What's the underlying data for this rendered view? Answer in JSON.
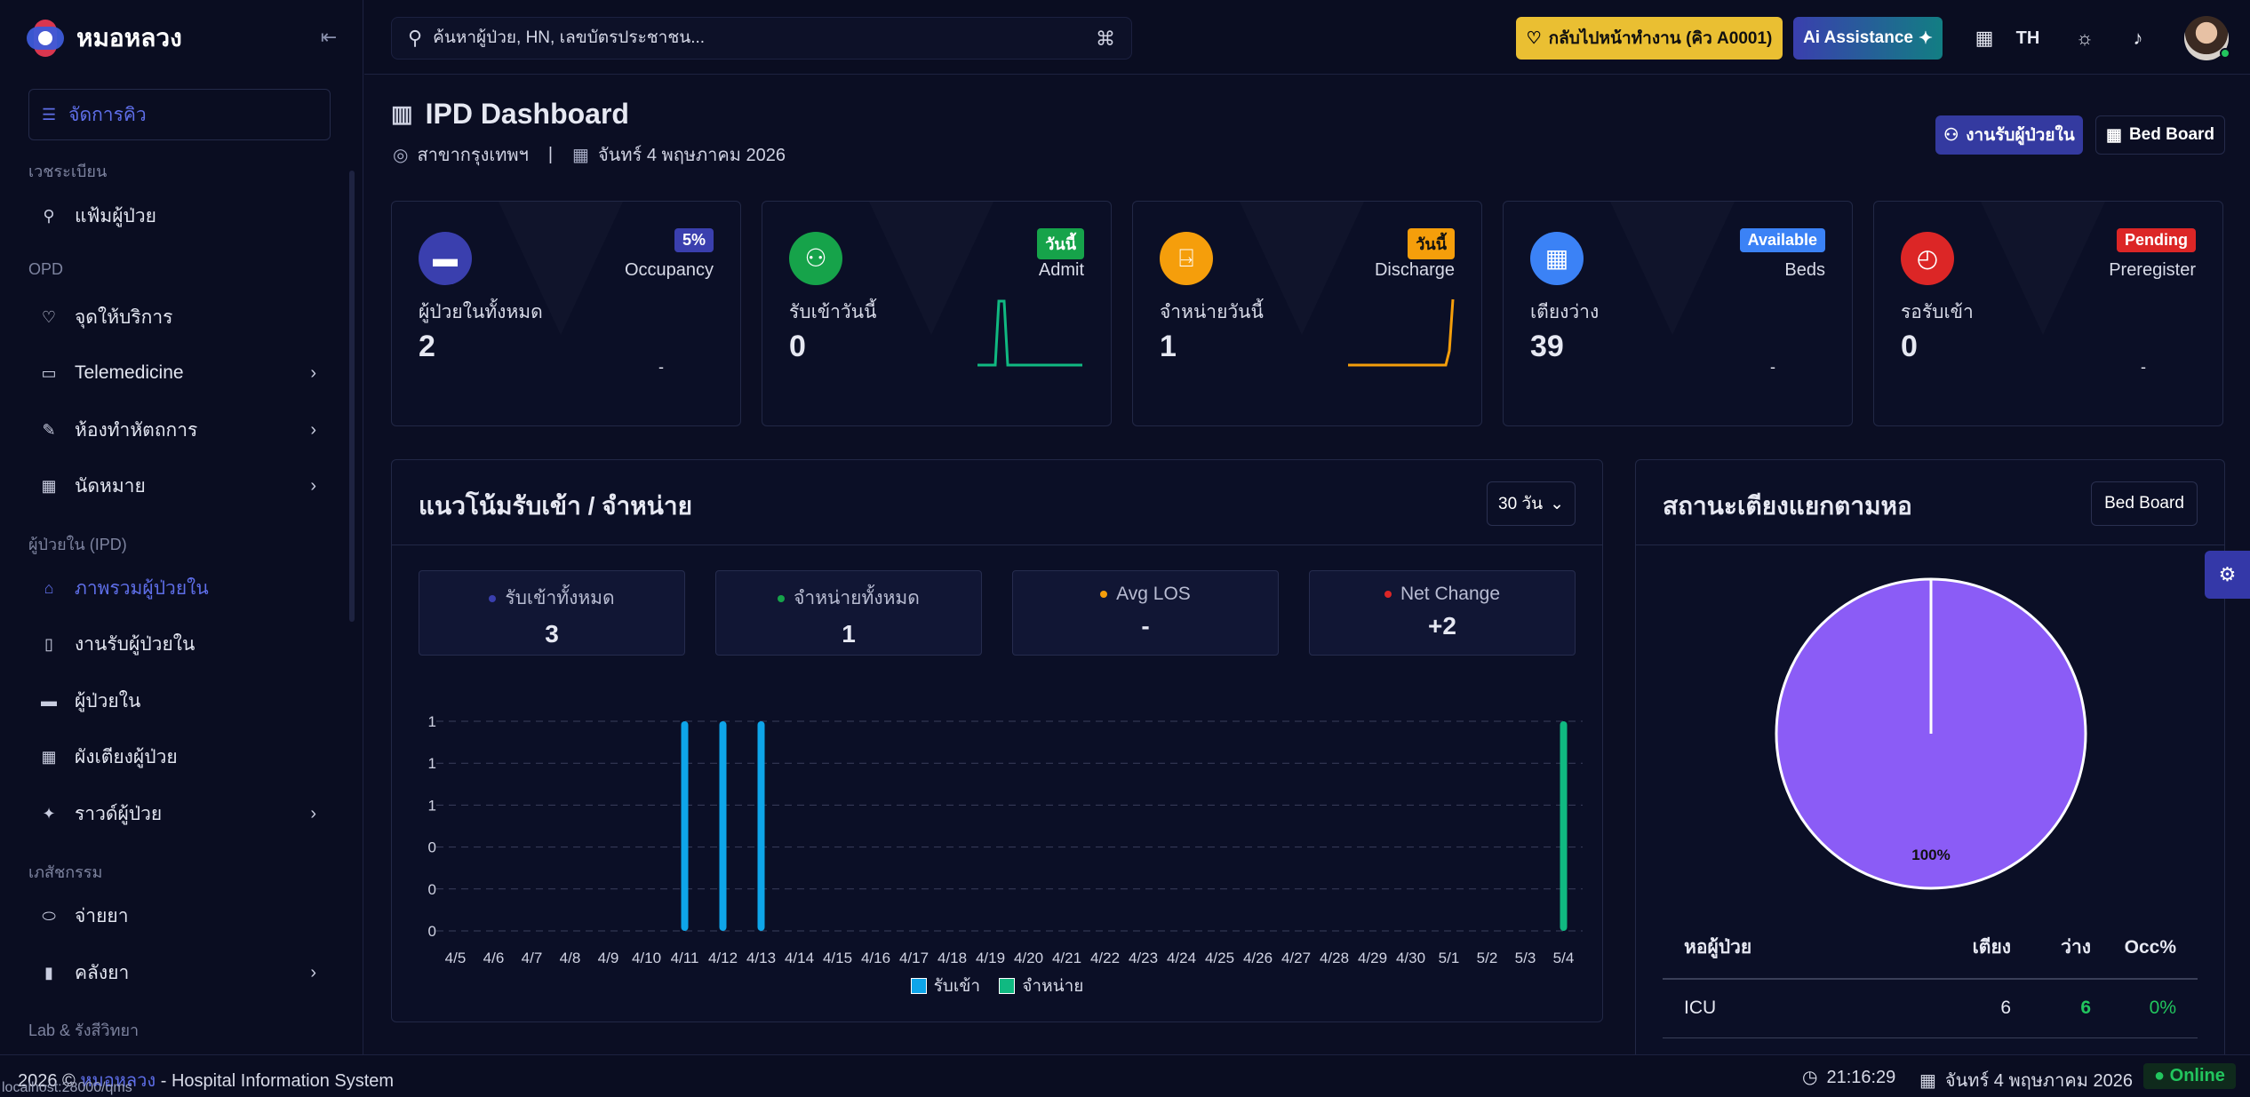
{
  "brand": {
    "name": "หมอหลวง"
  },
  "sidebar": {
    "queue_label": "จัดการคิว",
    "sections": [
      "เวชระเบียน",
      "OPD",
      "ผู้ป่วยใน (IPD)",
      "เภสัชกรรม",
      "Lab & รังสีวิทยา"
    ],
    "items": [
      {
        "label": "แฟ้มผู้ป่วย",
        "icon": "user-search-icon"
      },
      {
        "label": "จุดให้บริการ",
        "icon": "stethoscope-icon"
      },
      {
        "label": "Telemedicine",
        "icon": "video-icon"
      },
      {
        "label": "ห้องทำหัตถการ",
        "icon": "syringe-icon"
      },
      {
        "label": "นัดหมาย",
        "icon": "calendar-icon"
      },
      {
        "label": "ภาพรวมผู้ป่วยใน",
        "icon": "hospital-icon"
      },
      {
        "label": "งานรับผู้ป่วยใน",
        "icon": "file-plus-icon"
      },
      {
        "label": "ผู้ป่วยใน",
        "icon": "bed-icon"
      },
      {
        "label": "ผังเตียงผู้ป่วย",
        "icon": "grid-icon"
      },
      {
        "label": "ราวด์ผู้ป่วย",
        "icon": "walk-icon"
      },
      {
        "label": "จ่ายยา",
        "icon": "pill-icon"
      },
      {
        "label": "คลังยา",
        "icon": "medicine-bottle-icon"
      }
    ]
  },
  "topbar": {
    "search_placeholder": "ค้นหาผู้ป่วย, HN, เลขบัตรประชาชน...",
    "back_label": "กลับไปหน้าทำงาน (คิว A0001)",
    "ai_label": "Ai Assistance",
    "lang": "TH"
  },
  "header": {
    "title": "IPD Dashboard",
    "branch": "สาขากรุงเทพฯ",
    "separator": "|",
    "date": "จันทร์ 4 พฤษภาคม 2026",
    "admit_button": "งานรับผู้ป่วยใน",
    "bedboard_button": "Bed Board"
  },
  "cards": [
    {
      "badge": "5%",
      "tag": "Occupancy",
      "label": "ผู้ป่วยในทั้งหมด",
      "value": "2",
      "dash": "-",
      "color": "#3a3fae",
      "badge_color": "#3a3fae"
    },
    {
      "badge": "วันนี้",
      "tag": "Admit",
      "label": "รับเข้าวันนี้",
      "value": "0",
      "color": "#16a34a",
      "badge_color": "#16a34a"
    },
    {
      "badge": "วันนี้",
      "tag": "Discharge",
      "label": "จำหน่ายวันนี้",
      "value": "1",
      "color": "#f59e0b",
      "badge_color": "#f59e0b"
    },
    {
      "badge": "Available",
      "tag": "Beds",
      "label": "เตียงว่าง",
      "value": "39",
      "dash": "-",
      "color": "#3b82f6",
      "badge_color": "#3b82f6"
    },
    {
      "badge": "Pending",
      "tag": "Preregister",
      "label": "รอรับเข้า",
      "value": "0",
      "dash": "-",
      "color": "#dc2626",
      "badge_color": "#dc2626"
    }
  ],
  "trend": {
    "title": "แนวโน้มรับเข้า / จำหน่าย",
    "range": "30 วัน",
    "kpis": [
      {
        "label": "รับเข้าทั้งหมด",
        "value": "3",
        "dot": "#3a3fae"
      },
      {
        "label": "จำหน่ายทั้งหมด",
        "value": "1",
        "dot": "#16a34a"
      },
      {
        "label": "Avg LOS",
        "value": "-",
        "dot": "#f59e0b"
      },
      {
        "label": "Net Change",
        "value": "+2",
        "dot": "#dc2626"
      }
    ],
    "legend": [
      "รับเข้า",
      "จำหน่าย"
    ]
  },
  "chart_data": {
    "type": "bar",
    "categories": [
      "4/5",
      "4/6",
      "4/7",
      "4/8",
      "4/9",
      "4/10",
      "4/11",
      "4/12",
      "4/13",
      "4/14",
      "4/15",
      "4/16",
      "4/17",
      "4/18",
      "4/19",
      "4/20",
      "4/21",
      "4/22",
      "4/23",
      "4/24",
      "4/25",
      "4/26",
      "4/27",
      "4/28",
      "4/29",
      "4/30",
      "5/1",
      "5/2",
      "5/3",
      "5/4"
    ],
    "series": [
      {
        "name": "รับเข้า",
        "color": "#0ea5e9",
        "values": [
          0,
          0,
          0,
          0,
          0,
          0,
          1,
          1,
          1,
          0,
          0,
          0,
          0,
          0,
          0,
          0,
          0,
          0,
          0,
          0,
          0,
          0,
          0,
          0,
          0,
          0,
          0,
          0,
          0,
          0
        ]
      },
      {
        "name": "จำหน่าย",
        "color": "#10b981",
        "values": [
          0,
          0,
          0,
          0,
          0,
          0,
          0,
          0,
          0,
          0,
          0,
          0,
          0,
          0,
          0,
          0,
          0,
          0,
          0,
          0,
          0,
          0,
          0,
          0,
          0,
          0,
          0,
          0,
          0,
          1
        ]
      }
    ],
    "y_ticks": [
      "1",
      "1",
      "1",
      "0",
      "0",
      "0"
    ],
    "ylim": [
      0,
      1
    ],
    "grid": true,
    "legend_position": "bottom"
  },
  "bed_status": {
    "title": "สถานะเตียงแยกตามหอ",
    "button": "Bed Board",
    "pie": {
      "type": "pie",
      "slices": [
        {
          "label": "ICU",
          "value": 100,
          "color": "#8b5cf6"
        }
      ],
      "label": "100%"
    },
    "table": {
      "headers": [
        "หอผู้ป่วย",
        "เตียง",
        "ว่าง",
        "Occ%"
      ],
      "rows": [
        [
          "ICU",
          "6",
          "6",
          "0%"
        ]
      ]
    }
  },
  "footer": {
    "copyright_prefix": "2026 ©",
    "copyright_link": "หมอหลวง",
    "copyright_suffix": "- Hospital Information System",
    "url": "localhost:28000/qms",
    "time": "21:16:29",
    "date": "จันทร์ 4 พฤษภาคม 2026",
    "status": "Online"
  }
}
